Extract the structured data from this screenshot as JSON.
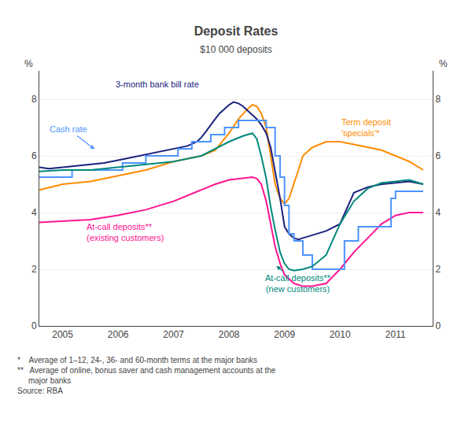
{
  "chart_data": {
    "type": "line",
    "title": "Deposit Rates",
    "subtitle": "$10 000 deposits",
    "ylabel": "%",
    "y2label": "%",
    "xlim": [
      2004.58,
      2011.67
    ],
    "xticks": [
      2005,
      2006,
      2007,
      2008,
      2009,
      2010,
      2011
    ],
    "ylim": [
      0,
      9
    ],
    "yticks": [
      0,
      2,
      4,
      6,
      8
    ],
    "y2lim": [
      0,
      9
    ],
    "y2ticks": [
      0,
      2,
      4,
      6,
      8
    ],
    "grid": "y",
    "series": [
      {
        "color": "#ff8c00",
        "line_style": "solid",
        "x": [
          2004.58,
          2005.0,
          2005.5,
          2006.0,
          2006.5,
          2007.0,
          2007.5,
          2007.75,
          2008.0,
          2008.17,
          2008.33,
          2008.42,
          2008.5,
          2008.58,
          2008.67,
          2008.75,
          2008.83,
          2008.92,
          2009.0,
          2009.08,
          2009.17,
          2009.25,
          2009.33,
          2009.5,
          2009.75,
          2010.0,
          2010.25,
          2010.5,
          2010.75,
          2011.0,
          2011.25,
          2011.5
        ],
        "values": [
          4.8,
          5.0,
          5.1,
          5.3,
          5.5,
          5.8,
          6.0,
          6.2,
          6.8,
          7.3,
          7.65,
          7.8,
          7.75,
          7.5,
          7.0,
          6.0,
          5.0,
          4.5,
          4.3,
          4.5,
          5.0,
          5.5,
          6.0,
          6.3,
          6.5,
          6.5,
          6.4,
          6.3,
          6.2,
          6.0,
          5.8,
          5.5
        ]
      },
      {
        "color": "#ff1493",
        "line_style": "solid",
        "x": [
          2004.58,
          2005.0,
          2005.5,
          2006.0,
          2006.5,
          2007.0,
          2007.5,
          2007.75,
          2008.0,
          2008.25,
          2008.42,
          2008.5,
          2008.58,
          2008.67,
          2008.75,
          2008.83,
          2008.92,
          2009.0,
          2009.17,
          2009.33,
          2009.5,
          2009.75,
          2010.0,
          2010.25,
          2010.5,
          2010.75,
          2011.0,
          2011.25,
          2011.5
        ],
        "values": [
          3.65,
          3.7,
          3.75,
          3.9,
          4.1,
          4.4,
          4.8,
          5.0,
          5.15,
          5.2,
          5.25,
          5.2,
          5.0,
          4.4,
          3.6,
          2.8,
          2.2,
          1.8,
          1.5,
          1.4,
          1.4,
          1.5,
          2.0,
          2.6,
          3.1,
          3.6,
          3.9,
          4.0,
          4.0
        ]
      },
      {
        "color": "#1a237e",
        "line_style": "solid",
        "x": [
          2004.58,
          2004.75,
          2005.0,
          2005.25,
          2005.5,
          2005.75,
          2006.0,
          2006.25,
          2006.5,
          2006.75,
          2007.0,
          2007.25,
          2007.42,
          2007.5,
          2007.58,
          2007.67,
          2007.75,
          2007.83,
          2007.92,
          2008.0,
          2008.08,
          2008.17,
          2008.25,
          2008.33,
          2008.42,
          2008.5,
          2008.58,
          2008.67,
          2008.75,
          2008.83,
          2008.92,
          2009.0,
          2009.08,
          2009.17,
          2009.25,
          2009.33,
          2009.5,
          2009.75,
          2010.0,
          2010.25,
          2010.5,
          2010.75,
          2011.0,
          2011.25,
          2011.5
        ],
        "values": [
          5.6,
          5.55,
          5.6,
          5.65,
          5.7,
          5.75,
          5.85,
          5.95,
          6.05,
          6.15,
          6.25,
          6.35,
          6.5,
          6.65,
          6.85,
          7.1,
          7.3,
          7.5,
          7.65,
          7.8,
          7.9,
          7.85,
          7.75,
          7.6,
          7.45,
          7.3,
          7.1,
          6.8,
          6.3,
          5.5,
          4.5,
          3.5,
          3.25,
          3.1,
          3.05,
          3.1,
          3.2,
          3.35,
          3.6,
          4.7,
          4.9,
          5.0,
          5.05,
          5.1,
          5.0
        ]
      },
      {
        "color": "#4d94ff",
        "line_style": "step",
        "x": [
          2004.58,
          2004.92,
          2005.17,
          2005.42,
          2006.08,
          2006.5,
          2007.08,
          2007.33,
          2007.67,
          2007.92,
          2008.17,
          2008.5,
          2008.67,
          2008.83,
          2008.92,
          2009.0,
          2009.08,
          2009.17,
          2009.33,
          2009.5,
          2010.08,
          2010.33,
          2010.92,
          2011.0,
          2011.5
        ],
        "values": [
          5.25,
          5.25,
          5.5,
          5.5,
          5.75,
          6.0,
          6.25,
          6.5,
          6.75,
          7.0,
          7.25,
          7.25,
          7.0,
          6.0,
          5.25,
          4.25,
          3.25,
          3.0,
          2.5,
          2.0,
          3.0,
          3.5,
          4.5,
          4.75,
          4.75
        ]
      },
      {
        "color": "#00897b",
        "line_style": "solid",
        "x": [
          2004.58,
          2005.0,
          2005.5,
          2006.0,
          2006.5,
          2007.0,
          2007.5,
          2008.0,
          2008.25,
          2008.42,
          2008.5,
          2008.58,
          2008.67,
          2008.75,
          2008.83,
          2008.92,
          2009.0,
          2009.08,
          2009.17,
          2009.33,
          2009.5,
          2009.75,
          2010.0,
          2010.25,
          2010.5,
          2010.75,
          2011.0,
          2011.25,
          2011.5
        ],
        "values": [
          5.45,
          5.5,
          5.5,
          5.6,
          5.7,
          5.8,
          6.0,
          6.5,
          6.7,
          6.8,
          6.6,
          6.0,
          5.2,
          4.2,
          3.4,
          2.6,
          2.2,
          2.0,
          1.95,
          2.0,
          2.1,
          2.5,
          3.6,
          4.4,
          4.85,
          5.05,
          5.1,
          5.15,
          5.0
        ]
      }
    ],
    "annotations": [
      {
        "text": "3-month bank bill rate",
        "x": 2006.7,
        "y": 8.3,
        "color": "#1a237e"
      },
      {
        "text": "Cash rate",
        "x": 2005.1,
        "y": 6.95,
        "color": "#4d94ff",
        "arrow_x": 2005.6,
        "arrow_y": 6.2
      },
      {
        "text": "At-call deposits**\n(existing customers)",
        "x": 2005.4,
        "y": 3.3,
        "color": "#ff1493"
      },
      {
        "text": "At-call deposits**\n(new customers)",
        "x": 2009.25,
        "y": 1.5,
        "color": "#00897b",
        "arrow_x": 2008.83,
        "arrow_y": 2.15
      },
      {
        "text": "Term deposit\n'specials'*",
        "x": 2010.0,
        "y": 7.0,
        "color": "#ff8c00"
      }
    ],
    "footnotes": [
      "*    Average of 1–12, 24-, 36- and 60-month terms at the major banks",
      "**   Average of online, bonus saver and cash management accounts at the\n     major banks",
      "Source: RBA"
    ]
  }
}
